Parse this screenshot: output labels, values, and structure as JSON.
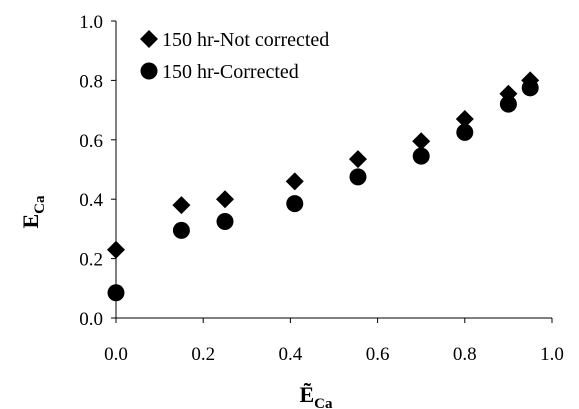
{
  "chart_data": {
    "type": "scatter",
    "xlabel": "Ẽ",
    "xlabel_sub": "Ca",
    "ylabel": "E",
    "ylabel_sub": "Ca",
    "xlim": [
      0.0,
      1.0
    ],
    "ylim": [
      0.0,
      1.0
    ],
    "xticks": [
      "0.0",
      "0.2",
      "0.4",
      "0.6",
      "0.8",
      "1.0"
    ],
    "yticks": [
      "0.0",
      "0.2",
      "0.4",
      "0.6",
      "0.8",
      "1.0"
    ],
    "grid": false,
    "legend_position": "top-left",
    "series": [
      {
        "name": "150 hr-Not corrected",
        "marker": "diamond",
        "color": "#000000",
        "x": [
          0.0,
          0.15,
          0.25,
          0.41,
          0.555,
          0.7,
          0.8,
          0.9,
          0.95
        ],
        "y": [
          0.23,
          0.38,
          0.4,
          0.46,
          0.535,
          0.595,
          0.67,
          0.755,
          0.8
        ]
      },
      {
        "name": "150 hr-Corrected",
        "marker": "circle",
        "color": "#000000",
        "x": [
          0.0,
          0.15,
          0.25,
          0.41,
          0.555,
          0.7,
          0.8,
          0.9,
          0.95
        ],
        "y": [
          0.085,
          0.295,
          0.325,
          0.385,
          0.475,
          0.545,
          0.625,
          0.72,
          0.775
        ]
      }
    ]
  }
}
